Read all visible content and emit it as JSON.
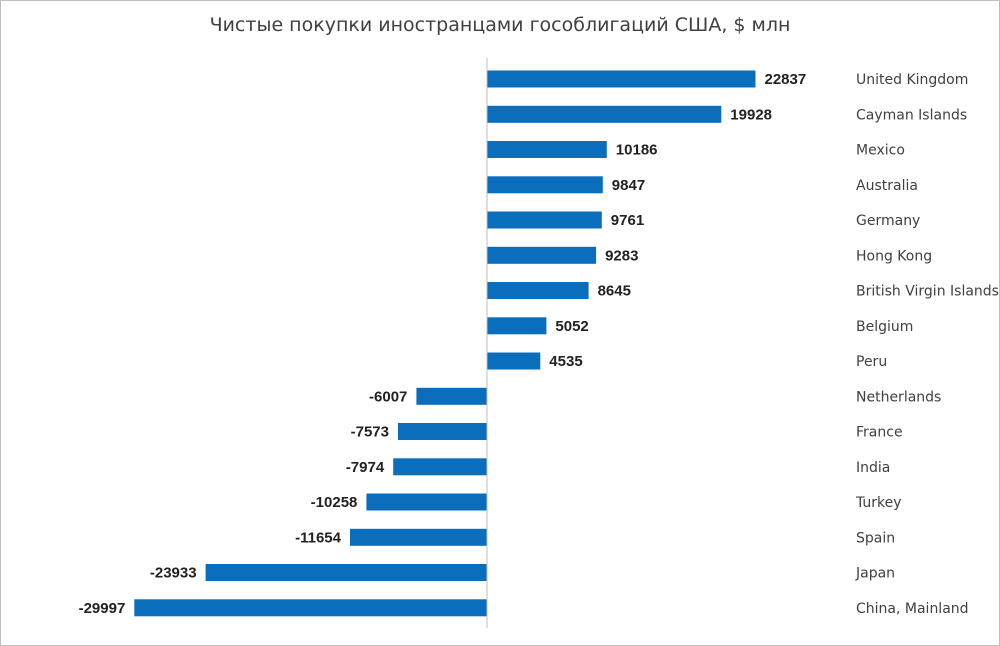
{
  "chart_data": {
    "type": "bar",
    "orientation": "horizontal",
    "title": "Чистые покупки иностранцами гособлигаций США, $ млн",
    "categories": [
      "United Kingdom",
      "Cayman Islands",
      "Mexico",
      "Australia",
      "Germany",
      "Hong Kong",
      "British Virgin Islands",
      "Belgium",
      "Peru",
      "Netherlands",
      "France",
      "India",
      "Turkey",
      "Spain",
      "Japan",
      "China, Mainland"
    ],
    "values": [
      22837,
      19928,
      10186,
      9847,
      9761,
      9283,
      8645,
      5052,
      4535,
      -6007,
      -7573,
      -7974,
      -10258,
      -11654,
      -23933,
      -29997
    ],
    "value_labels": [
      "22837",
      "19928",
      "10186",
      "9847",
      "9761",
      "9283",
      "8645",
      "5052",
      "4535",
      "-6007",
      "-7573",
      "-7974",
      "-10258",
      "-11654",
      "-23933",
      "-29997"
    ],
    "bar_color": "#0a6ebd",
    "data_labels": true,
    "grid": false,
    "legend": "none",
    "category_labels_position": "right"
  }
}
